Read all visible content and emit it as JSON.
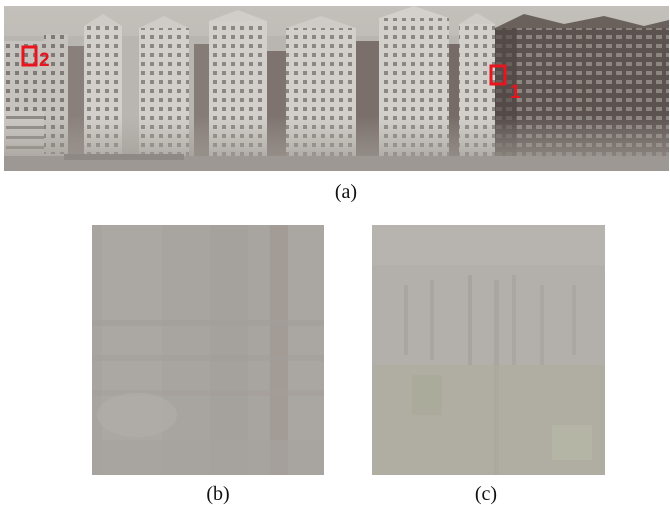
{
  "captions": {
    "a": "(a)",
    "b": "(b)",
    "c": "(c)"
  },
  "markers": [
    {
      "label": "1",
      "color": "#e8141e"
    },
    {
      "label": "2",
      "color": "#e8141e"
    }
  ],
  "colors": {
    "haze": "#bdb9b3",
    "building_light": "#d6d3cf",
    "building_dark": "#5e5552",
    "marker": "#e8141e"
  }
}
